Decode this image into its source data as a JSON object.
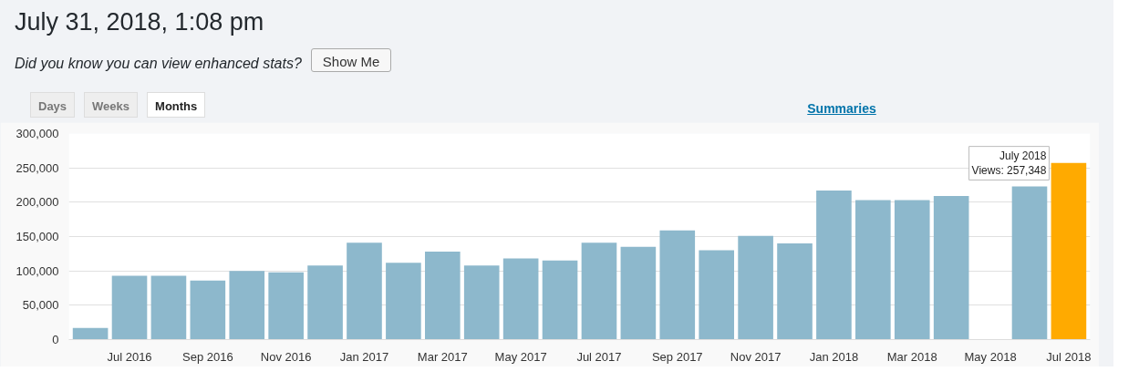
{
  "chart_data": {
    "type": "bar",
    "title": "July 31, 2018, 1:08 pm",
    "subtitle": "Did you know you can view enhanced stats?",
    "annotations": [
      "Show Me",
      "Days",
      "Weeks",
      "Months",
      "Summaries",
      {
        "text": "July 2018\nViews: 257,348",
        "x": "Jul 2018",
        "y": 257348
      }
    ],
    "categories": [
      null,
      "Jul 2016",
      null,
      "Sep 2016",
      null,
      "Nov 2016",
      null,
      "Jan 2017",
      null,
      "Mar 2017",
      null,
      "May 2017",
      null,
      "Jul 2017",
      null,
      "Sep 2017",
      null,
      "Nov 2017",
      null,
      "Jan 2018",
      null,
      "Mar 2018",
      null,
      "May 2018",
      null,
      "Jul 2018"
    ],
    "values": [
      17000,
      93000,
      93000,
      86000,
      100000,
      98000,
      108000,
      141000,
      112000,
      128000,
      108000,
      118000,
      115000,
      141000,
      135000,
      159000,
      130000,
      151000,
      140000,
      217000,
      203000,
      203000,
      209000,
      null,
      223000,
      257348
    ],
    "colors": [
      "#8db8cc",
      "#8db8cc",
      "#8db8cc",
      "#8db8cc",
      "#8db8cc",
      "#8db8cc",
      "#8db8cc",
      "#8db8cc",
      "#8db8cc",
      "#8db8cc",
      "#8db8cc",
      "#8db8cc",
      "#8db8cc",
      "#8db8cc",
      "#8db8cc",
      "#8db8cc",
      "#8db8cc",
      "#8db8cc",
      "#8db8cc",
      "#8db8cc",
      "#8db8cc",
      "#8db8cc",
      "#8db8cc",
      "#8db8cc",
      "#8db8cc",
      "#ffaa00"
    ],
    "ylim": [
      0,
      300000
    ],
    "yticks": [
      {
        "value": 0,
        "label": "0"
      },
      {
        "value": 50000,
        "label": "50,000"
      },
      {
        "value": 100000,
        "label": "100,000"
      },
      {
        "value": 150000,
        "label": "150,000"
      },
      {
        "value": 200000,
        "label": "200,000"
      },
      {
        "value": 250000,
        "label": "250,000"
      },
      {
        "value": 300000,
        "label": "300,000"
      }
    ],
    "grid": "y"
  }
}
